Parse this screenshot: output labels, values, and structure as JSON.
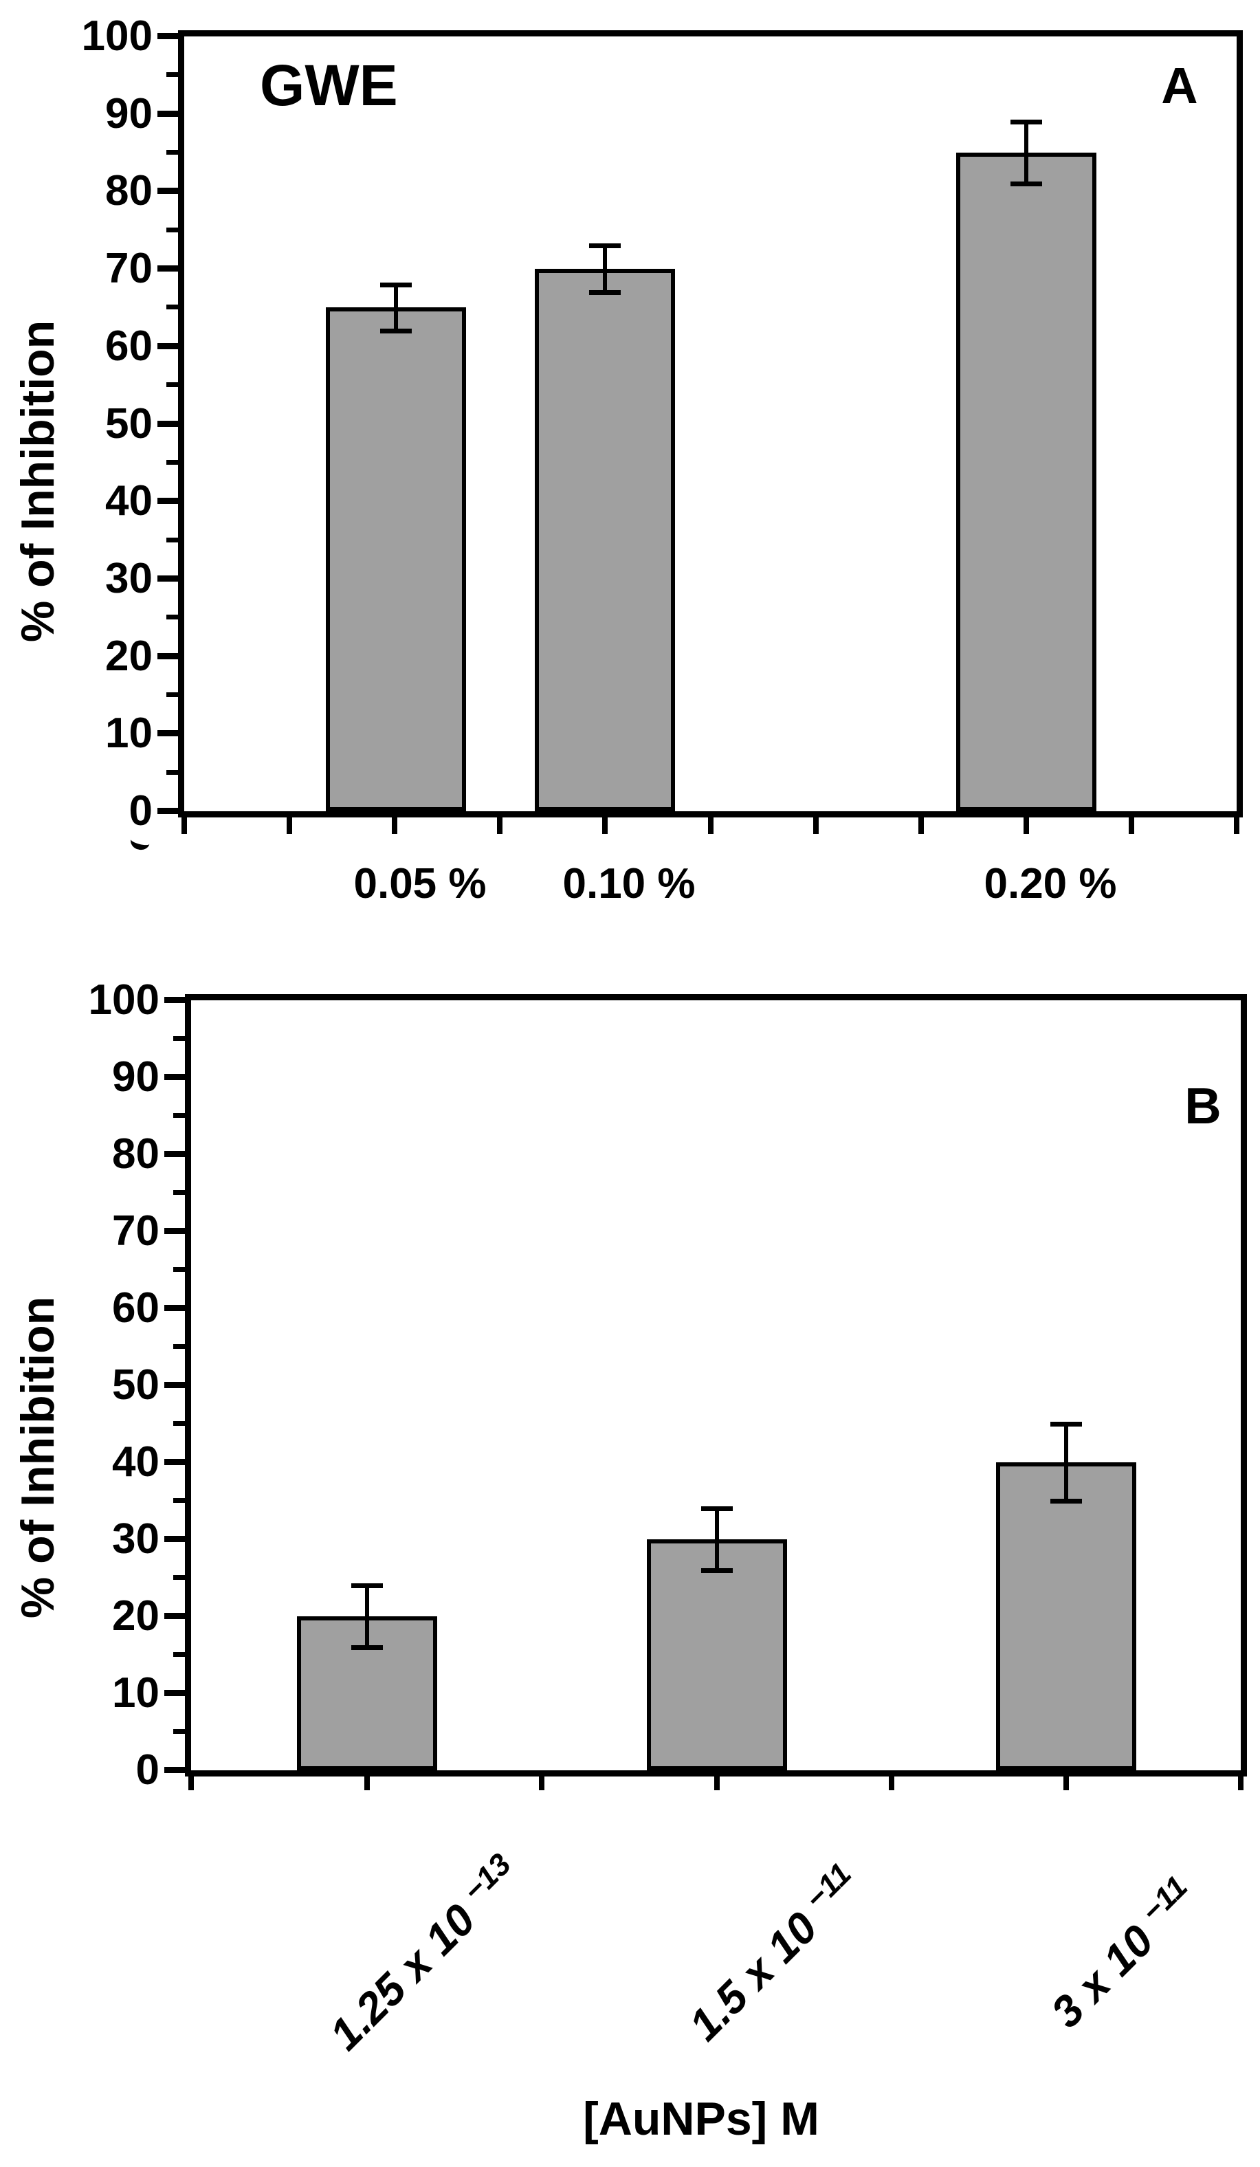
{
  "figure": {
    "background_color": "#ffffff",
    "bar_fill_color": "#a0a0a0",
    "axis_color": "#000000",
    "panel_count": 2
  },
  "chart_data": [
    {
      "type": "bar",
      "panel": "top",
      "corner_label": "A",
      "title": "GWE",
      "xlabel": "",
      "ylabel": "% of Inhibition",
      "categories": [
        "0.05 %",
        "0.10 %",
        "0.20 %"
      ],
      "values": [
        65,
        70,
        85
      ],
      "errors": [
        3,
        3,
        4
      ],
      "ylim": [
        0,
        100
      ],
      "yticks": [
        0,
        10,
        20,
        30,
        40,
        50,
        60,
        70,
        80,
        90,
        100
      ],
      "ytick_minor_step": 5,
      "grid": "off",
      "legend": "none",
      "bar_color": "#a0a0a0",
      "bar_edge_color": "#000000"
    },
    {
      "type": "bar",
      "panel": "bottom",
      "corner_label": "B",
      "title": "",
      "xlabel": "[AuNPs] M",
      "ylabel": "% of Inhibition",
      "categories": [
        "1.25 x 10 ⁻¹³",
        "1.5 x 10 ⁻¹¹",
        "3 x 10 ⁻¹¹"
      ],
      "values": [
        20,
        30,
        40
      ],
      "errors": [
        4,
        4,
        5
      ],
      "ylim": [
        0,
        100
      ],
      "yticks": [
        0,
        10,
        20,
        30,
        40,
        50,
        60,
        70,
        80,
        90,
        100
      ],
      "ytick_minor_step": 5,
      "grid": "off",
      "legend": "none",
      "bar_color": "#a0a0a0",
      "bar_edge_color": "#000000",
      "xtick_label_rotation_deg": -45
    }
  ]
}
